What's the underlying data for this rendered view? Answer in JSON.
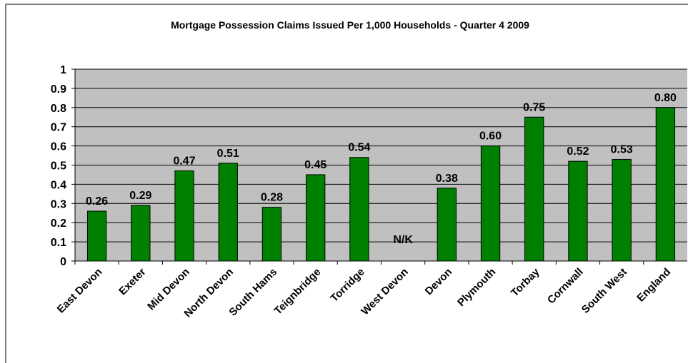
{
  "chart_data": {
    "type": "bar",
    "title": "Mortgage Possession Claims Issued Per 1,000 Households - Quarter 4 2009",
    "categories": [
      "East Devon",
      "Exeter",
      "Mid Devon",
      "North Devon",
      "South Hams",
      "Teignbridge",
      "Torridge",
      "West Devon",
      "Devon",
      "Plymouth",
      "Torbay",
      "Cornwall",
      "South West",
      "England"
    ],
    "values": [
      0.26,
      0.29,
      0.47,
      0.51,
      0.28,
      0.45,
      0.54,
      null,
      0.38,
      0.6,
      0.75,
      0.52,
      0.53,
      0.8
    ],
    "value_labels": [
      "0.26",
      "0.29",
      "0.47",
      "0.51",
      "0.28",
      "0.45",
      "0.54",
      null,
      "0.38",
      "0.60",
      "0.75",
      "0.52",
      "0.53",
      "0.80"
    ],
    "annotation": "N/K",
    "color": "#008000",
    "ylim": [
      0,
      1
    ],
    "yticks": [
      0,
      0.1,
      0.2,
      0.3,
      0.4,
      0.5,
      0.6,
      0.7,
      0.8,
      0.9,
      1
    ],
    "grid": true
  }
}
